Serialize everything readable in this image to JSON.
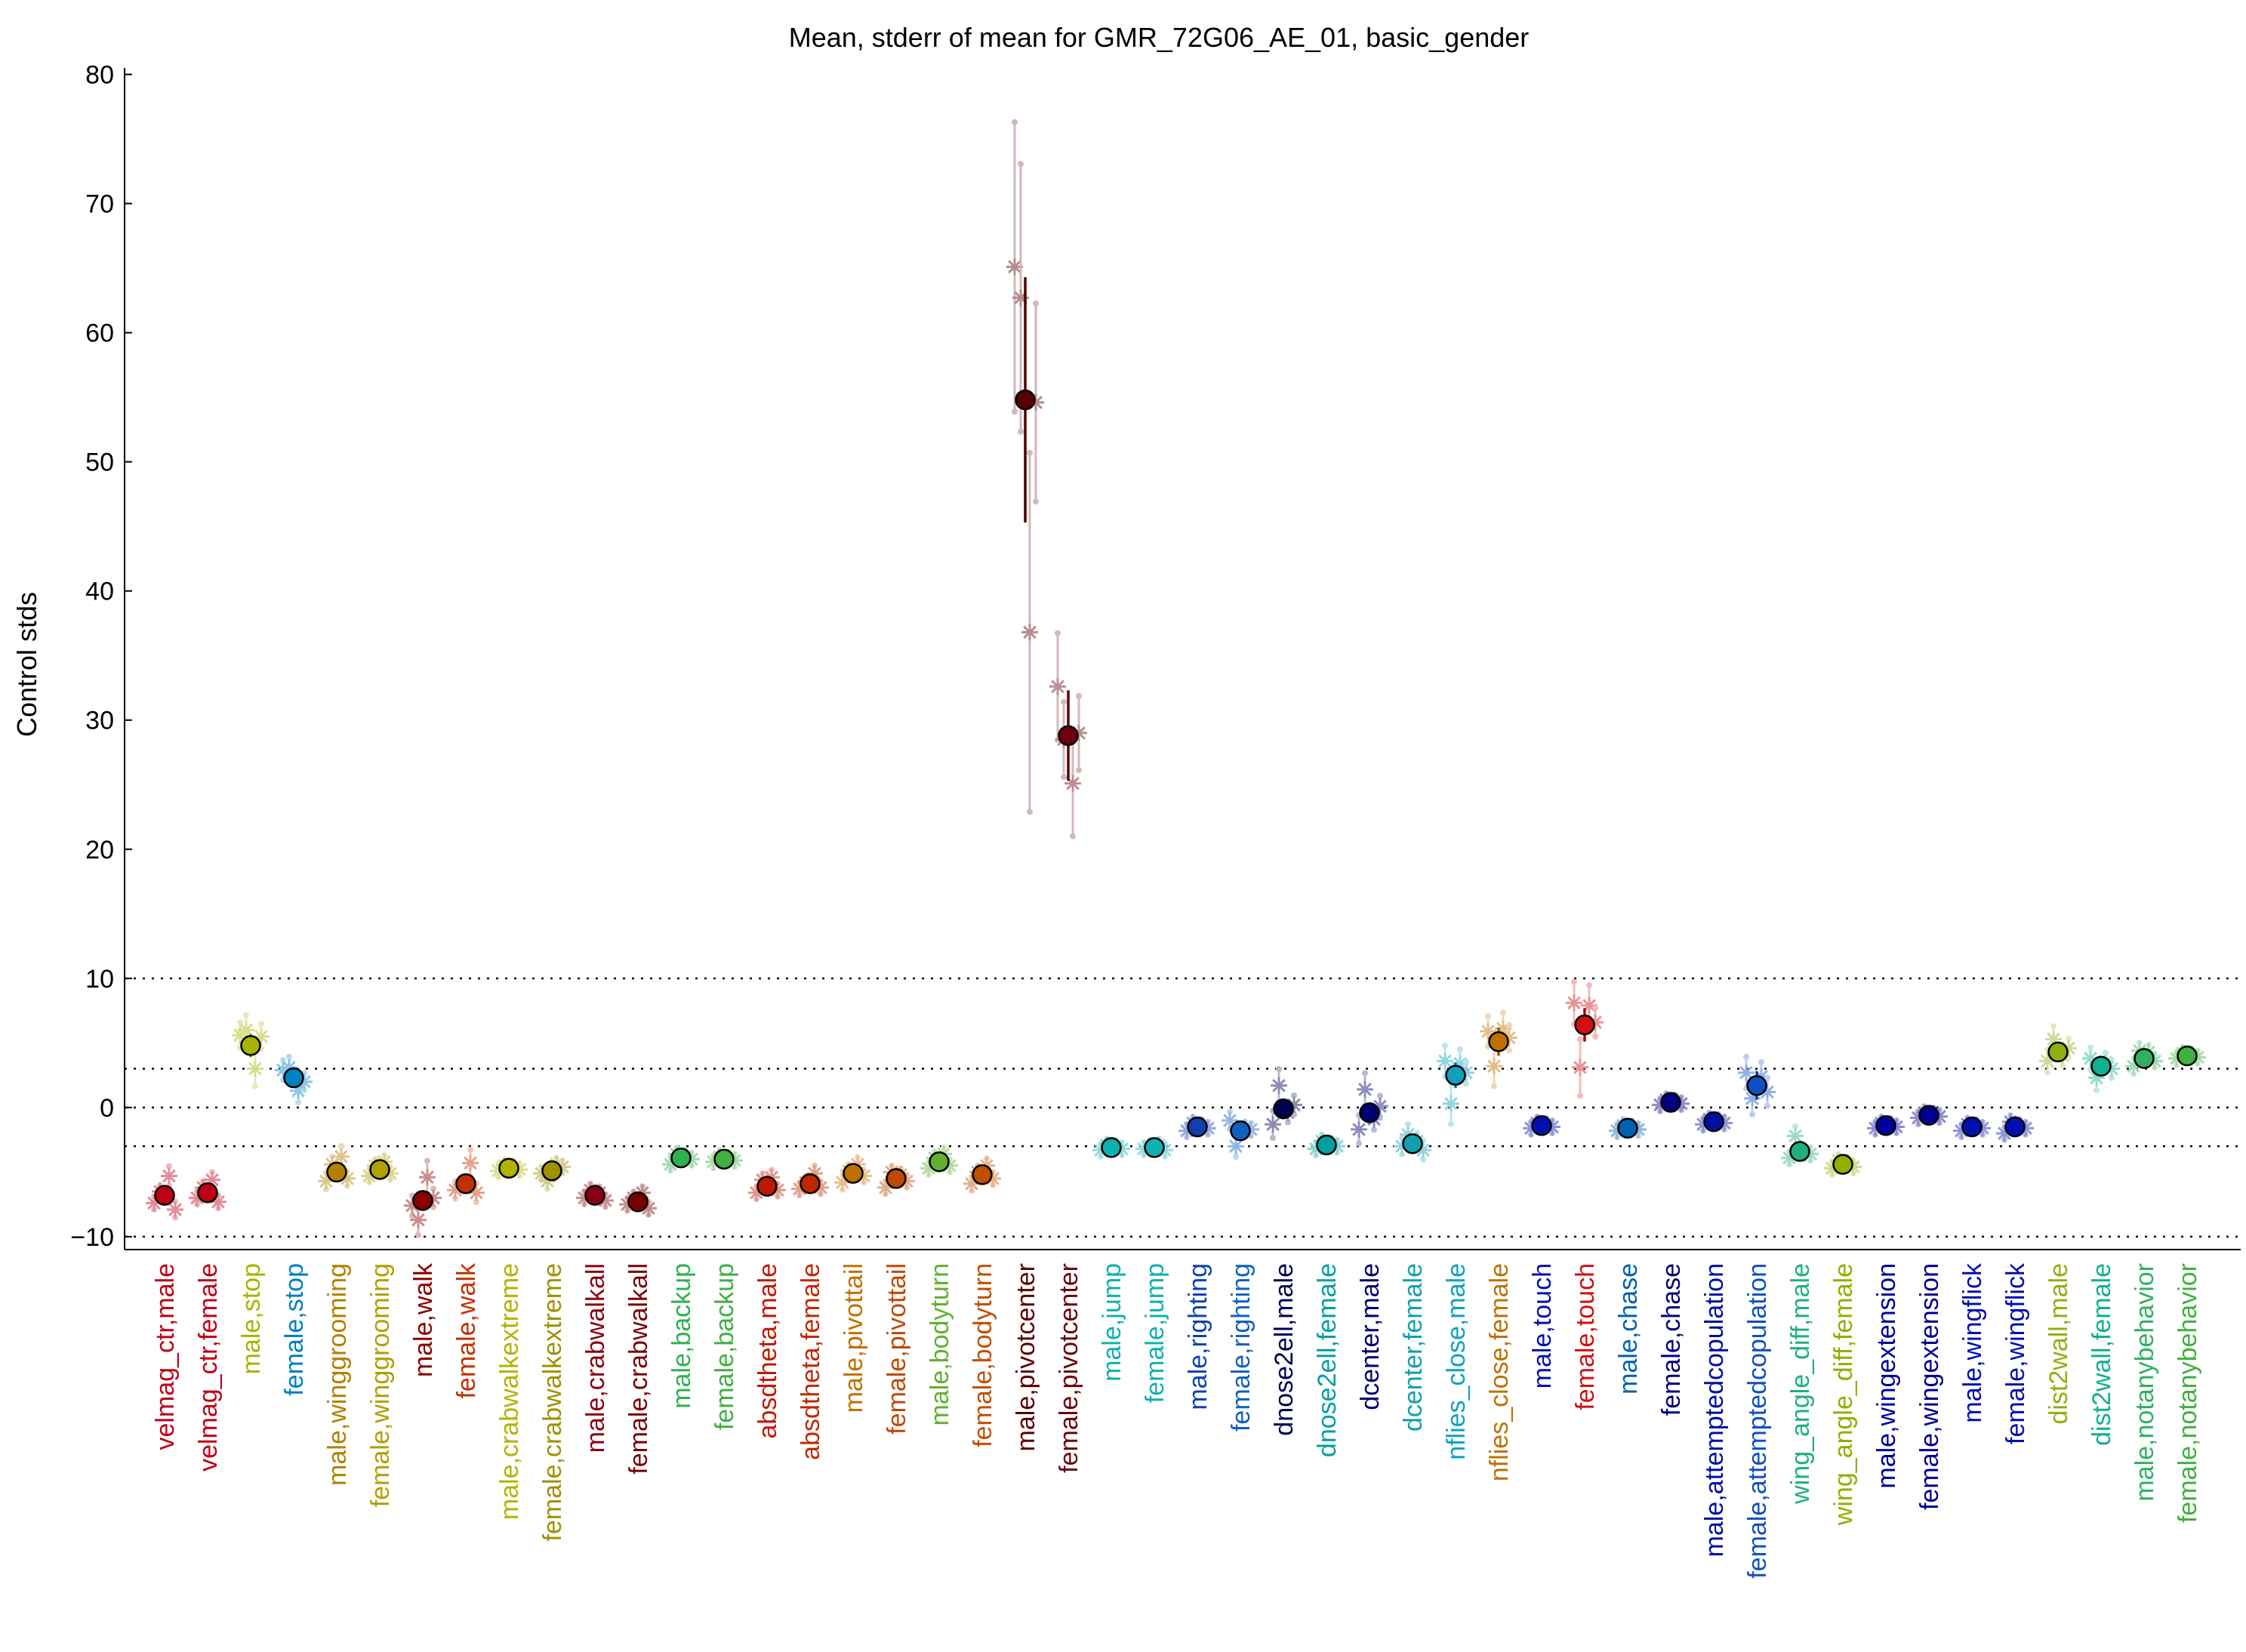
{
  "chart_data": {
    "type": "scatter",
    "title": "Mean, stderr of mean for GMR_72G06_AE_01, basic_gender",
    "xlabel": "",
    "ylabel": "Control stds",
    "ylim": [
      -11,
      80.5
    ],
    "yticks": [
      -10,
      0,
      10,
      20,
      30,
      40,
      50,
      60,
      70,
      80
    ],
    "reference_lines": [
      -10,
      -3,
      0,
      3,
      10
    ],
    "grid": false,
    "categories": [
      {
        "label": "velmag_ctr,male",
        "color": "#c00015",
        "mean": -6.8,
        "stderr": 0.3,
        "points": [
          -7.4,
          -6.5,
          -5.3,
          -7.9
        ]
      },
      {
        "label": "velmag_ctr,female",
        "color": "#c00015",
        "mean": -6.6,
        "stderr": 0.3,
        "points": [
          -7.0,
          -6.2,
          -5.6,
          -7.3
        ]
      },
      {
        "label": "male,stop",
        "color": "#a8b400",
        "mean": 4.8,
        "stderr": 0.9,
        "points": [
          5.6,
          6.0,
          3.0,
          5.5
        ]
      },
      {
        "label": "female,stop",
        "color": "#0080c0",
        "mean": 2.3,
        "stderr": 0.7,
        "points": [
          2.9,
          3.1,
          1.3,
          2.0
        ]
      },
      {
        "label": "male,winggrooming",
        "color": "#b08000",
        "mean": -5.0,
        "stderr": 0.5,
        "points": [
          -5.7,
          -4.4,
          -3.8,
          -5.5
        ]
      },
      {
        "label": "female,winggrooming",
        "color": "#b0a000",
        "mean": -4.8,
        "stderr": 0.4,
        "points": [
          -5.3,
          -4.5,
          -4.2,
          -5.1
        ]
      },
      {
        "label": "male,walk",
        "color": "#8a0000",
        "mean": -7.2,
        "stderr": 0.8,
        "points": [
          -7.6,
          -8.7,
          -5.4,
          -7.0
        ]
      },
      {
        "label": "female,walk",
        "color": "#c03000",
        "mean": -5.9,
        "stderr": 0.6,
        "points": [
          -6.4,
          -6.0,
          -4.3,
          -6.6
        ]
      },
      {
        "label": "male,crabwalkextreme",
        "color": "#b0b400",
        "mean": -4.7,
        "stderr": 0.3,
        "points": [
          -4.9,
          -4.5,
          -4.6,
          -4.8
        ]
      },
      {
        "label": "female,crabwalkextreme",
        "color": "#a09000",
        "mean": -4.9,
        "stderr": 0.4,
        "points": [
          -5.1,
          -5.7,
          -4.4,
          -4.6
        ]
      },
      {
        "label": "male,crabwalkall",
        "color": "#8a0010",
        "mean": -6.8,
        "stderr": 0.3,
        "points": [
          -7.0,
          -6.4,
          -6.6,
          -7.2
        ]
      },
      {
        "label": "female,crabwalkall",
        "color": "#7a0000",
        "mean": -7.3,
        "stderr": 0.3,
        "points": [
          -7.5,
          -7.0,
          -6.6,
          -7.8
        ]
      },
      {
        "label": "male,backup",
        "color": "#30b050",
        "mean": -3.9,
        "stderr": 0.3,
        "points": [
          -4.4,
          -3.6,
          -3.8,
          -4.0
        ]
      },
      {
        "label": "female,backup",
        "color": "#40b040",
        "mean": -4.0,
        "stderr": 0.2,
        "points": [
          -4.2,
          -3.8,
          -3.9,
          -4.1
        ]
      },
      {
        "label": "absdtheta,male",
        "color": "#c01800",
        "mean": -6.1,
        "stderr": 0.4,
        "points": [
          -6.6,
          -5.6,
          -5.4,
          -6.4
        ]
      },
      {
        "label": "absdtheta,female",
        "color": "#c02800",
        "mean": -5.9,
        "stderr": 0.4,
        "points": [
          -6.3,
          -5.8,
          -5.1,
          -6.2
        ]
      },
      {
        "label": "male,pivottail",
        "color": "#c07000",
        "mean": -5.1,
        "stderr": 0.4,
        "points": [
          -5.8,
          -4.9,
          -4.4,
          -5.3
        ]
      },
      {
        "label": "female,pivottail",
        "color": "#c04800",
        "mean": -5.5,
        "stderr": 0.3,
        "points": [
          -6.2,
          -5.0,
          -5.2,
          -5.7
        ]
      },
      {
        "label": "male,bodyturn",
        "color": "#60b030",
        "mean": -4.2,
        "stderr": 0.3,
        "points": [
          -4.7,
          -3.9,
          -3.6,
          -4.5
        ]
      },
      {
        "label": "female,bodyturn",
        "color": "#c05000",
        "mean": -5.2,
        "stderr": 0.4,
        "points": [
          -5.9,
          -5.0,
          -4.5,
          -5.5
        ]
      },
      {
        "label": "male,pivotcenter",
        "color": "#5a0000",
        "mean": 54.8,
        "stderr": 9.5,
        "points": [
          65.1,
          62.7,
          36.8,
          54.6
        ]
      },
      {
        "label": "female,pivotcenter",
        "color": "#6a0010",
        "mean": 28.8,
        "stderr": 3.5,
        "points": [
          32.6,
          28.5,
          25.1,
          29.0
        ]
      },
      {
        "label": "male,jump",
        "color": "#10b0b0",
        "mean": -3.1,
        "stderr": 0.2,
        "points": [
          -3.3,
          -2.9,
          -3.0,
          -3.2
        ]
      },
      {
        "label": "female,jump",
        "color": "#10b0b0",
        "mean": -3.1,
        "stderr": 0.2,
        "points": [
          -3.2,
          -3.0,
          -2.9,
          -3.3
        ]
      },
      {
        "label": "male,righting",
        "color": "#1040b0",
        "mean": -1.5,
        "stderr": 0.3,
        "points": [
          -1.8,
          -1.2,
          -1.4,
          -1.6
        ]
      },
      {
        "label": "female,righting",
        "color": "#1060c0",
        "mean": -1.8,
        "stderr": 0.5,
        "points": [
          -1.0,
          -3.0,
          -1.6,
          -1.7
        ]
      },
      {
        "label": "dnose2ell,male",
        "color": "#000050",
        "mean": -0.1,
        "stderr": 0.8,
        "points": [
          -1.3,
          1.7,
          -0.4,
          0.2
        ]
      },
      {
        "label": "dnose2ell,female",
        "color": "#00a0a0",
        "mean": -2.9,
        "stderr": 0.5,
        "points": [
          -3.2,
          -2.6,
          -2.8,
          -3.0
        ]
      },
      {
        "label": "dcenter,male",
        "color": "#000070",
        "mean": -0.4,
        "stderr": 0.8,
        "points": [
          -1.7,
          1.4,
          -0.9,
          0.1
        ]
      },
      {
        "label": "dcenter,female",
        "color": "#10a0b0",
        "mean": -2.8,
        "stderr": 0.7,
        "points": [
          -3.0,
          -2.1,
          -2.6,
          -3.3
        ]
      },
      {
        "label": "nflies_close,male",
        "color": "#10a0c0",
        "mean": 2.5,
        "stderr": 1.0,
        "points": [
          3.6,
          0.3,
          3.4,
          2.7
        ]
      },
      {
        "label": "nflies_close,female",
        "color": "#c07000",
        "mean": 5.1,
        "stderr": 1.1,
        "points": [
          5.9,
          3.2,
          6.1,
          5.4
        ]
      },
      {
        "label": "male,touch",
        "color": "#0010b0",
        "mean": -1.4,
        "stderr": 0.3,
        "points": [
          -1.6,
          -1.2,
          -1.3,
          -1.5
        ]
      },
      {
        "label": "female,touch",
        "color": "#d01010",
        "mean": 6.4,
        "stderr": 1.3,
        "points": [
          8.1,
          3.1,
          7.9,
          6.6
        ]
      },
      {
        "label": "male,chase",
        "color": "#0060b0",
        "mean": -1.6,
        "stderr": 0.2,
        "points": [
          -1.8,
          -1.4,
          -1.5,
          -1.7
        ]
      },
      {
        "label": "female,chase",
        "color": "#000080",
        "mean": 0.4,
        "stderr": 0.3,
        "points": [
          0.2,
          0.6,
          0.5,
          0.3
        ]
      },
      {
        "label": "male,attemptedcopulation",
        "color": "#0010a0",
        "mean": -1.1,
        "stderr": 0.2,
        "points": [
          -1.3,
          -0.9,
          -1.0,
          -1.2
        ]
      },
      {
        "label": "female,attemptedcopulation",
        "color": "#1050c0",
        "mean": 1.7,
        "stderr": 1.1,
        "points": [
          2.7,
          0.7,
          2.4,
          1.2
        ]
      },
      {
        "label": "wing_angle_diff,male",
        "color": "#20b080",
        "mean": -3.4,
        "stderr": 0.4,
        "points": [
          -3.9,
          -2.2,
          -3.5,
          -3.6
        ]
      },
      {
        "label": "wing_angle_diff,female",
        "color": "#90b000",
        "mean": -4.4,
        "stderr": 0.3,
        "points": [
          -4.7,
          -4.1,
          -4.3,
          -4.6
        ]
      },
      {
        "label": "male,wingextension",
        "color": "#0000a0",
        "mean": -1.4,
        "stderr": 0.2,
        "points": [
          -1.6,
          -1.2,
          -1.3,
          -1.5
        ]
      },
      {
        "label": "female,wingextension",
        "color": "#000090",
        "mean": -0.6,
        "stderr": 0.2,
        "points": [
          -0.8,
          -0.4,
          -0.5,
          -0.7
        ]
      },
      {
        "label": "male,wingflick",
        "color": "#0010b0",
        "mean": -1.5,
        "stderr": 0.3,
        "points": [
          -1.8,
          -1.3,
          -1.4,
          -1.6
        ]
      },
      {
        "label": "female,wingflick",
        "color": "#0010b0",
        "mean": -1.5,
        "stderr": 0.4,
        "points": [
          -2.0,
          -1.1,
          -1.4,
          -1.6
        ]
      },
      {
        "label": "dist2wall,male",
        "color": "#90b010",
        "mean": 4.3,
        "stderr": 0.8,
        "points": [
          3.6,
          5.3,
          4.0,
          4.6
        ]
      },
      {
        "label": "dist2wall,female",
        "color": "#10b090",
        "mean": 3.2,
        "stderr": 0.8,
        "points": [
          3.8,
          2.3,
          3.5,
          3.0
        ]
      },
      {
        "label": "male,notanybehavior",
        "color": "#30b060",
        "mean": 3.8,
        "stderr": 0.5,
        "points": [
          3.2,
          4.4,
          4.3,
          3.6
        ]
      },
      {
        "label": "female,notanybehavior",
        "color": "#40b040",
        "mean": 4.0,
        "stderr": 0.3,
        "points": [
          3.8,
          4.2,
          4.1,
          3.9
        ]
      }
    ]
  }
}
